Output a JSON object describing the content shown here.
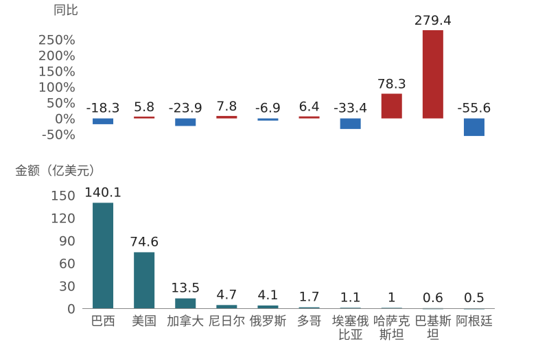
{
  "categories": [
    "巴西",
    "美国",
    "加拿大",
    "尼日尔",
    "俄罗斯",
    "多哥",
    "埃塞俄比亚",
    "哈萨克斯坦",
    "巴基斯坦",
    "阿根廷"
  ],
  "category_label_lines": [
    [
      "巴西"
    ],
    [
      "美国"
    ],
    [
      "加拿大"
    ],
    [
      "尼日尔"
    ],
    [
      "俄罗斯"
    ],
    [
      "多哥"
    ],
    [
      "埃塞俄",
      "比亚"
    ],
    [
      "哈萨克",
      "斯坦"
    ],
    [
      "巴基斯",
      "坦"
    ],
    [
      "阿根廷"
    ]
  ],
  "colors": {
    "negative": "#2e6db4",
    "positive": "#b02a2a",
    "amount": "#2a6e7c",
    "text": "#222222",
    "axis": "#555555"
  },
  "chart_data": [
    {
      "type": "bar",
      "ylabel": "同比",
      "value_labels": [
        "-18.3",
        "5.8",
        "-23.9",
        "7.8",
        "-6.9",
        "6.4",
        "-33.4",
        "78.3",
        "279.4",
        "-55.6"
      ],
      "values": [
        -18.3,
        5.8,
        -23.9,
        7.8,
        -6.9,
        6.4,
        -33.4,
        78.3,
        279.4,
        -55.6
      ],
      "yticks": [
        "-50%",
        "0%",
        "50%",
        "100%",
        "150%",
        "200%",
        "250%"
      ],
      "ytick_values": [
        -50,
        0,
        50,
        100,
        150,
        200,
        250
      ],
      "ylim": [
        -60,
        280
      ]
    },
    {
      "type": "bar",
      "ylabel": "金额（亿美元）",
      "value_labels": [
        "140.1",
        "74.6",
        "13.5",
        "4.7",
        "4.1",
        "1.7",
        "1.1",
        "1",
        "0.6",
        "0.5"
      ],
      "values": [
        140.1,
        74.6,
        13.5,
        4.7,
        4.1,
        1.7,
        1.1,
        1,
        0.6,
        0.5
      ],
      "yticks": [
        "0",
        "30",
        "60",
        "90",
        "120",
        "150"
      ],
      "ytick_values": [
        0,
        30,
        60,
        90,
        120,
        150
      ],
      "ylim": [
        0,
        150
      ]
    }
  ]
}
